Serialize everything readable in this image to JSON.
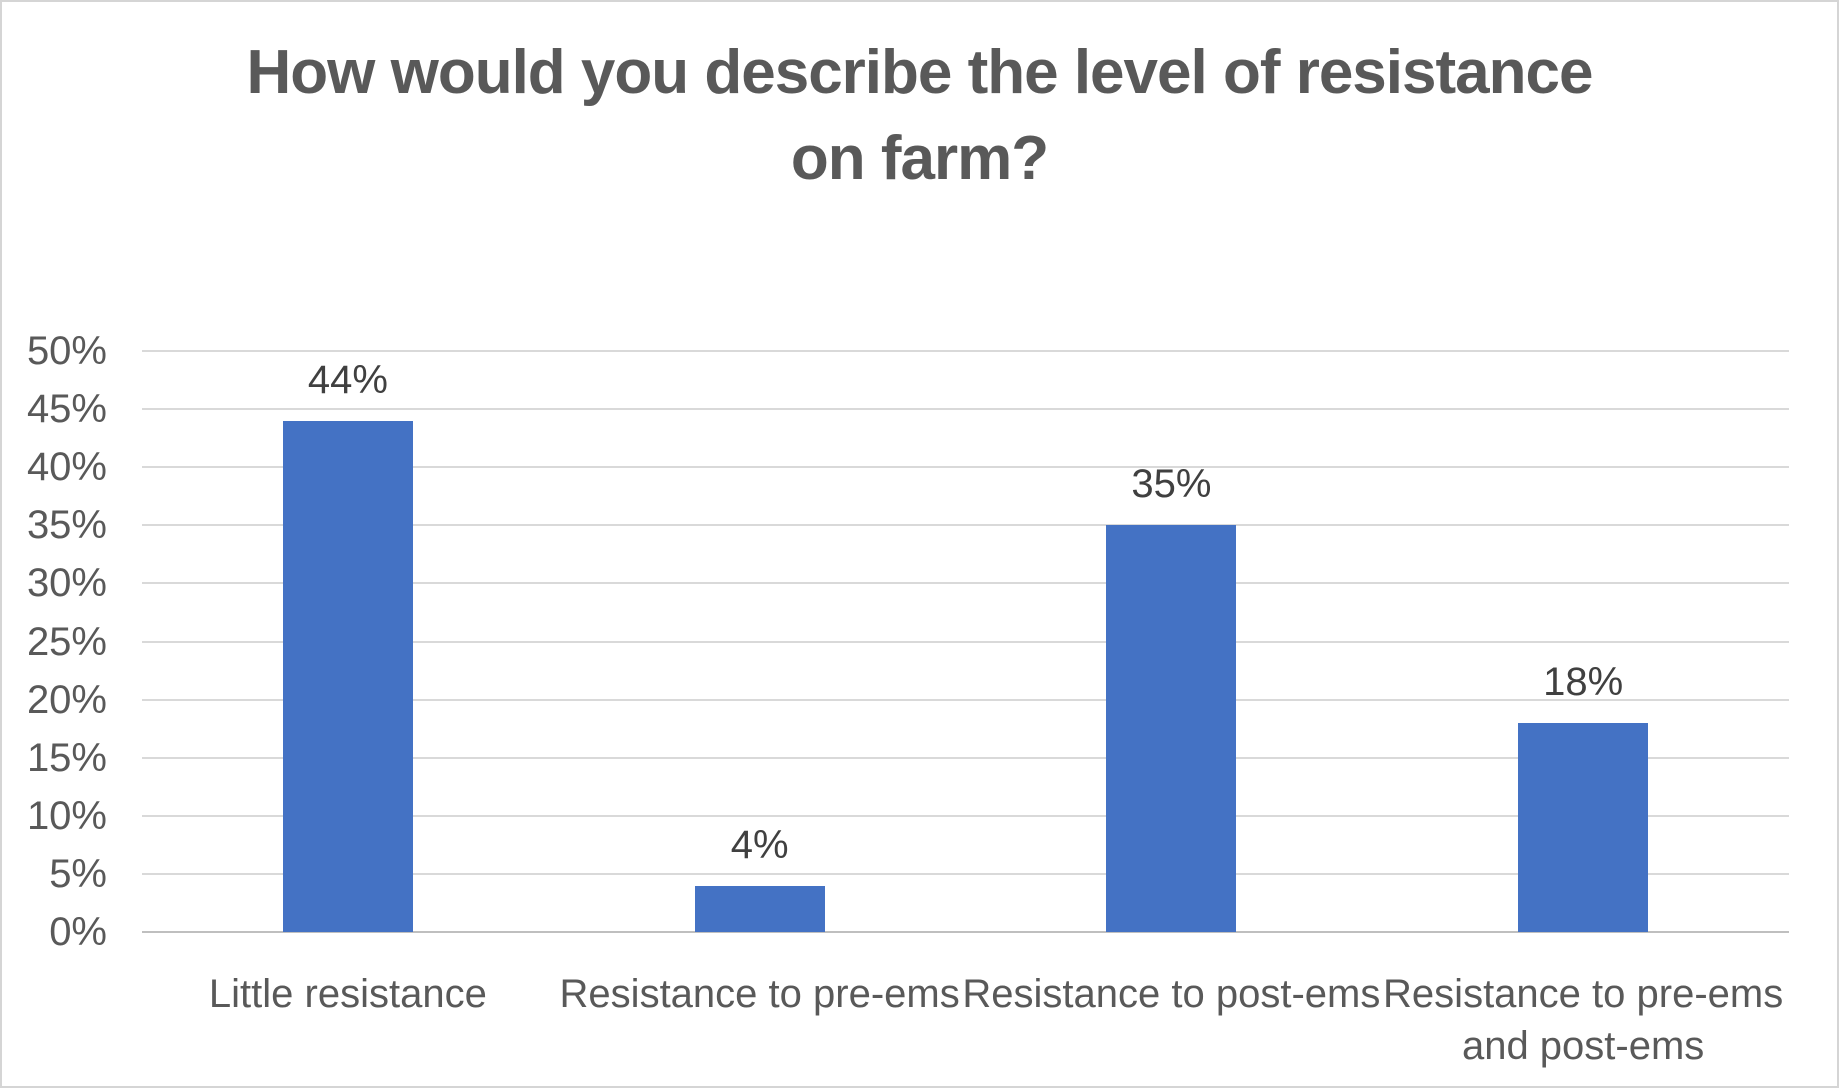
{
  "chart": {
    "title_lines": [
      "How would you describe the level of resistance",
      "on farm?"
    ]
  },
  "chart_data": {
    "type": "bar",
    "title": "How would you describe the level of resistance on farm?",
    "categories": [
      "Little resistance",
      "Resistance to pre-ems",
      "Resistance to post-ems",
      "Resistance to pre-ems and post-ems"
    ],
    "category_display": [
      "Little resistance",
      "Resistance to pre-ems",
      "Resistance to post-ems",
      "Resistance to pre-ems\nand post-ems"
    ],
    "values": [
      44,
      4,
      35,
      18
    ],
    "data_labels": [
      "44%",
      "4%",
      "35%",
      "18%"
    ],
    "xlabel": "",
    "ylabel": "",
    "ylim": [
      0,
      50
    ],
    "y_tick_step": 5,
    "y_ticks": [
      "0%",
      "5%",
      "10%",
      "15%",
      "20%",
      "25%",
      "30%",
      "35%",
      "40%",
      "45%",
      "50%"
    ],
    "grid": "horizontal",
    "legend": "none",
    "colors": {
      "bar": "#4472C4",
      "gridline": "#D9D9D9",
      "axis_line": "#BFBFBF",
      "title": "#595959",
      "tick_label": "#595959",
      "data_label": "#404040",
      "background": "#FFFFFF",
      "frame_border": "#D5D5D5"
    }
  }
}
